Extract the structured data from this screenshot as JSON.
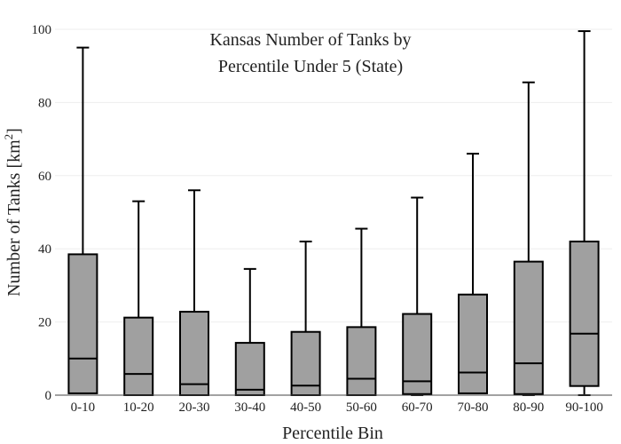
{
  "chart_data": {
    "type": "box",
    "title_lines": [
      "Kansas Number of Tanks by",
      "Percentile Under 5 (State)"
    ],
    "xlabel": "Percentile Bin",
    "ylabel": {
      "text": "Number of Tanks  [km",
      "sup": "2",
      "suffix": "]"
    },
    "ylim": [
      0,
      100
    ],
    "yticks": [
      0,
      20,
      40,
      60,
      80,
      100
    ],
    "grid": true,
    "categories": [
      "0-10",
      "10-20",
      "20-30",
      "30-40",
      "40-50",
      "50-60",
      "60-70",
      "70-80",
      "80-90",
      "90-100"
    ],
    "boxes": [
      {
        "category": "0-10",
        "min": 0.5,
        "q1": 0.5,
        "median": 10,
        "q3": 38.5,
        "max": 95
      },
      {
        "category": "10-20",
        "min": 0,
        "q1": 0,
        "median": 5.8,
        "q3": 21.2,
        "max": 53
      },
      {
        "category": "20-30",
        "min": 0,
        "q1": 0,
        "median": 3,
        "q3": 22.8,
        "max": 56
      },
      {
        "category": "30-40",
        "min": 0,
        "q1": 0,
        "median": 1.5,
        "q3": 14.3,
        "max": 34.5
      },
      {
        "category": "40-50",
        "min": 0,
        "q1": 0,
        "median": 2.6,
        "q3": 17.3,
        "max": 42
      },
      {
        "category": "50-60",
        "min": 0,
        "q1": 0,
        "median": 4.5,
        "q3": 18.6,
        "max": 45.5
      },
      {
        "category": "60-70",
        "min": 0,
        "q1": 0.3,
        "median": 3.8,
        "q3": 22.2,
        "max": 54
      },
      {
        "category": "70-80",
        "min": 0.5,
        "q1": 0.5,
        "median": 6.2,
        "q3": 27.5,
        "max": 66
      },
      {
        "category": "80-90",
        "min": 0,
        "q1": 0.3,
        "median": 8.7,
        "q3": 36.5,
        "max": 85.5
      },
      {
        "category": "90-100",
        "min": 0,
        "q1": 2.5,
        "median": 16.8,
        "q3": 42,
        "max": 99.5
      }
    ],
    "colors": {
      "box_fill": "#a0a0a0",
      "stroke": "#000000",
      "grid": "#eeeeee"
    }
  }
}
